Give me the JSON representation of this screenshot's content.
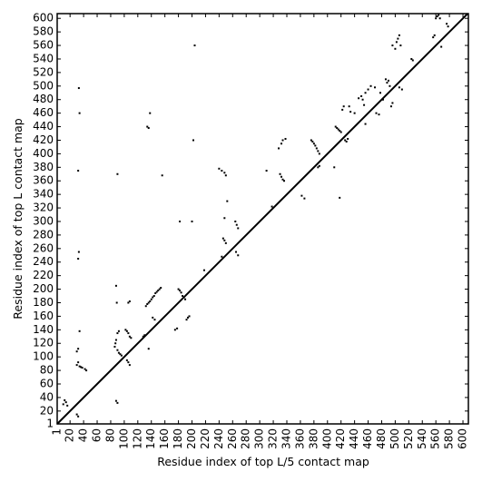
{
  "chart_data": {
    "type": "scatter",
    "xlabel": "Residue index of top L/5 contact map",
    "ylabel": "Residue index of top L contact map",
    "xlim": [
      1,
      608
    ],
    "ylim": [
      1,
      607
    ],
    "xticks": [
      1,
      20,
      40,
      60,
      80,
      100,
      120,
      140,
      160,
      180,
      200,
      220,
      240,
      260,
      280,
      300,
      320,
      340,
      360,
      380,
      400,
      420,
      440,
      460,
      480,
      500,
      520,
      540,
      560,
      580,
      600
    ],
    "yticks": [
      1,
      20,
      40,
      60,
      80,
      100,
      120,
      140,
      160,
      180,
      200,
      220,
      240,
      260,
      280,
      300,
      320,
      340,
      360,
      380,
      400,
      420,
      440,
      460,
      480,
      500,
      520,
      540,
      560,
      580,
      600
    ],
    "diagonal": true,
    "color": "#000000",
    "x": [
      10,
      12,
      14,
      16,
      30,
      32,
      30,
      32,
      34,
      36,
      38,
      42,
      44,
      30,
      32,
      34,
      32,
      33,
      32,
      34,
      33,
      88,
      90,
      86,
      87,
      88,
      90,
      92,
      94,
      96,
      90,
      92,
      89,
      88,
      90,
      102,
      104,
      106,
      108,
      110,
      104,
      106,
      108,
      106,
      108,
      128,
      130,
      132,
      134,
      136,
      138,
      140,
      142,
      144,
      146,
      148,
      150,
      152,
      154,
      145,
      142,
      136,
      134,
      136,
      138,
      156,
      175,
      178,
      180,
      182,
      184,
      186,
      188,
      190,
      192,
      194,
      196,
      200,
      202,
      204,
      182,
      218,
      240,
      244,
      248,
      250,
      252,
      248,
      246,
      248,
      250,
      244,
      264,
      266,
      268,
      265,
      268,
      318,
      310,
      330,
      332,
      334,
      336,
      328,
      332,
      334,
      338,
      362,
      366,
      376,
      378,
      380,
      382,
      384,
      386,
      388,
      386,
      388,
      410,
      412,
      414,
      416,
      418,
      420,
      422,
      424,
      426,
      428,
      430,
      418,
      432,
      434,
      440,
      446,
      450,
      452,
      454,
      456,
      456,
      460,
      464,
      470,
      472,
      476,
      478,
      482,
      486,
      488,
      490,
      492,
      494,
      496,
      496,
      500,
      502,
      504,
      506,
      508,
      506,
      510,
      524,
      526,
      556,
      558,
      560,
      562,
      564,
      566,
      568,
      576,
      578
    ],
    "values": [
      30,
      36,
      33,
      28,
      15,
      12,
      88,
      92,
      86,
      85,
      84,
      82,
      80,
      108,
      112,
      138,
      245,
      255,
      375,
      460,
      497,
      35,
      32,
      115,
      120,
      125,
      110,
      106,
      104,
      102,
      135,
      138,
      180,
      205,
      370,
      140,
      138,
      135,
      130,
      128,
      95,
      92,
      88,
      180,
      182,
      130,
      132,
      175,
      178,
      180,
      182,
      185,
      188,
      190,
      194,
      196,
      198,
      200,
      202,
      155,
      158,
      112,
      440,
      438,
      460,
      368,
      140,
      142,
      200,
      198,
      195,
      190,
      188,
      185,
      155,
      158,
      160,
      300,
      420,
      560,
      300,
      228,
      378,
      375,
      372,
      368,
      330,
      305,
      275,
      272,
      268,
      248,
      300,
      295,
      290,
      255,
      250,
      322,
      375,
      370,
      366,
      362,
      360,
      408,
      415,
      420,
      422,
      338,
      334,
      420,
      418,
      415,
      412,
      408,
      404,
      400,
      380,
      382,
      380,
      440,
      438,
      436,
      434,
      432,
      465,
      470,
      420,
      418,
      422,
      335,
      470,
      462,
      460,
      482,
      485,
      480,
      472,
      444,
      490,
      495,
      500,
      498,
      460,
      458,
      490,
      480,
      510,
      505,
      508,
      500,
      470,
      475,
      560,
      555,
      565,
      570,
      575,
      560,
      498,
      495,
      540,
      538,
      572,
      575,
      600,
      603,
      605,
      600,
      558,
      592,
      588
    ]
  }
}
